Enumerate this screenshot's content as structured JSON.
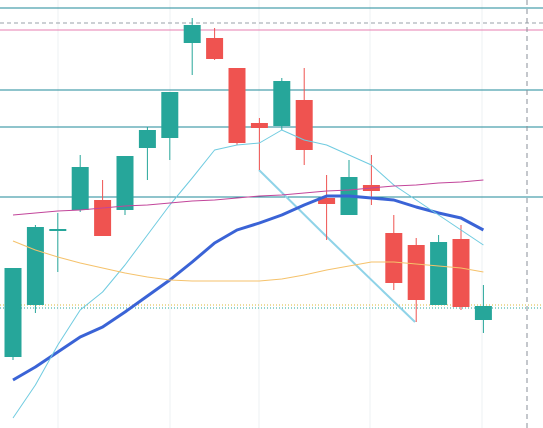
{
  "chart_data": {
    "type": "candlestick",
    "ylim": [
      0,
      428
    ],
    "up_color": "#26a69a",
    "down_color": "#ef5350",
    "open": [
      71,
      123,
      197,
      218,
      228,
      218,
      280,
      290,
      385,
      390,
      360,
      305,
      302,
      328,
      230,
      213,
      243,
      195,
      183,
      123,
      189,
      108
    ],
    "close": [
      160,
      201,
      199,
      261,
      192,
      272,
      298,
      336,
      403,
      369,
      285,
      300,
      347,
      278,
      224,
      251,
      237,
      145,
      128,
      186,
      121,
      122
    ],
    "high": [
      160,
      203,
      215,
      273,
      248,
      272,
      301,
      336,
      410,
      400,
      360,
      310,
      350,
      360,
      253,
      268,
      273,
      213,
      190,
      193,
      203,
      143
    ],
    "low": [
      68,
      115,
      156,
      216,
      192,
      213,
      248,
      268,
      353,
      368,
      283,
      258,
      298,
      263,
      188,
      213,
      223,
      138,
      106,
      123,
      118,
      95
    ],
    "overlays": [
      {
        "color": "#3a63d6",
        "width": 3,
        "values": [
          48,
          61,
          76,
          91,
          101,
          116,
          132,
          148,
          166,
          185,
          198,
          205,
          213,
          223,
          232,
          232,
          230,
          228,
          221,
          215,
          210,
          198
        ]
      },
      {
        "color": "#6fcbe0",
        "width": 1,
        "values": [
          10,
          43,
          83,
          118,
          136,
          163,
          193,
          223,
          250,
          278,
          283,
          285,
          298,
          288,
          283,
          273,
          263,
          243,
          228,
          213,
          198,
          183
        ]
      },
      {
        "color": "#f5c26b",
        "width": 1,
        "values": [
          187,
          178,
          171,
          165,
          160,
          155,
          151,
          148,
          147,
          147,
          147,
          147,
          149,
          153,
          158,
          162,
          166,
          166,
          164,
          162,
          160,
          156
        ]
      },
      {
        "color": "#c2459a",
        "width": 1,
        "values": [
          213,
          215,
          217,
          218,
          220,
          222,
          223,
          225,
          227,
          228,
          230,
          232,
          233,
          235,
          237,
          238,
          240,
          242,
          243,
          245,
          246,
          248
        ]
      }
    ]
  }
}
